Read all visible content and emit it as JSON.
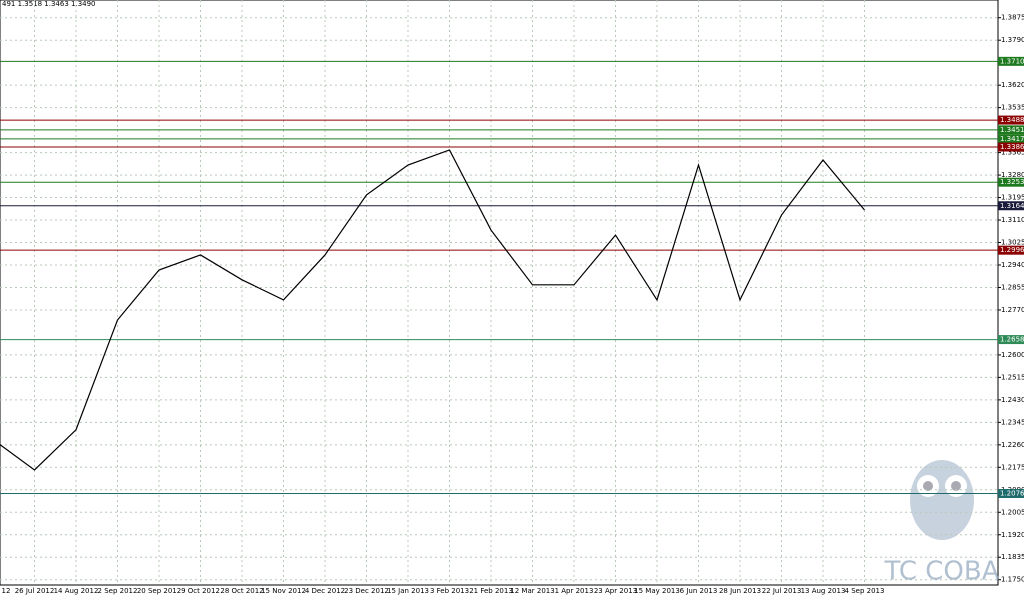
{
  "chart_data": {
    "type": "line",
    "header": "491 1.3518 1.3463 1.3490",
    "categories": [
      "12",
      "26 Jul 2012",
      "14 Aug 2012",
      "2 Sep 2012",
      "20 Sep 2012",
      "9 Oct 2012",
      "28 Oct 2012",
      "15 Nov 2012",
      "4 Dec 2012",
      "23 Dec 2012",
      "15 Jan 2013",
      "3 Feb 2013",
      "21 Feb 2013",
      "12 Mar 2013",
      "1 Apr 2013",
      "23 Apr 2013",
      "15 May 2013",
      "6 Jun 2013",
      "28 Jun 2013",
      "22 Jul 2013",
      "13 Aug 2013",
      "4 Sep 2013"
    ],
    "series": [
      {
        "color": "#000000",
        "values": [
          1.228,
          1.2165,
          1.2317,
          1.2732,
          1.2921,
          1.2978,
          1.2884,
          1.2808,
          1.2978,
          1.3205,
          1.3318,
          1.3375,
          1.3072,
          1.2865,
          1.2865,
          1.3053,
          1.2808,
          1.3318,
          1.2808,
          1.3129,
          1.3337,
          1.3148
        ]
      }
    ],
    "ylim": [
      1.173,
      1.3942
    ],
    "yticks": [
      {
        "value": 1.3875,
        "label": "1.3875"
      },
      {
        "value": 1.379,
        "label": "1.3790"
      },
      {
        "value": 1.362,
        "label": "1.3620"
      },
      {
        "value": 1.3535,
        "label": "1.3535"
      },
      {
        "value": 1.3365,
        "label": "1.3365"
      },
      {
        "value": 1.328,
        "label": "1.3280"
      },
      {
        "value": 1.3195,
        "label": "1.3195"
      },
      {
        "value": 1.311,
        "label": "1.3110"
      },
      {
        "value": 1.3025,
        "label": "1.3025"
      },
      {
        "value": 1.294,
        "label": "1.2940"
      },
      {
        "value": 1.2855,
        "label": "1.2855"
      },
      {
        "value": 1.277,
        "label": "1.2770"
      },
      {
        "value": 1.26,
        "label": "1.2600"
      },
      {
        "value": 1.2515,
        "label": "1.2515"
      },
      {
        "value": 1.243,
        "label": "1.2430"
      },
      {
        "value": 1.2345,
        "label": "1.2345"
      },
      {
        "value": 1.226,
        "label": "1.2260"
      },
      {
        "value": 1.2175,
        "label": "1.2175"
      },
      {
        "value": 1.209,
        "label": "1.2090"
      },
      {
        "value": 1.2005,
        "label": "1.2005"
      },
      {
        "value": 1.192,
        "label": "1.1920"
      },
      {
        "value": 1.1835,
        "label": "1.1835"
      },
      {
        "value": 1.175,
        "label": "1.1750"
      }
    ],
    "levels": [
      {
        "value": 1.371,
        "label": "1.3710",
        "color": "#1f7a1f"
      },
      {
        "value": 1.3488,
        "label": "1.3488",
        "color": "#8b0000"
      },
      {
        "value": 1.3451,
        "label": "1.3451",
        "color": "#1f7a1f"
      },
      {
        "value": 1.3417,
        "label": "1.3417",
        "color": "#1f7a1f"
      },
      {
        "value": 1.3386,
        "label": "1.3386",
        "color": "#8b0000"
      },
      {
        "value": 1.3253,
        "label": "1.3253",
        "color": "#1f7a1f"
      },
      {
        "value": 1.3164,
        "label": "1.3164",
        "color": "#1a1a3a"
      },
      {
        "value": 1.2996,
        "label": "1.2996",
        "color": "#8b0000"
      },
      {
        "value": 1.2658,
        "label": "1.2658",
        "color": "#2e8b57"
      },
      {
        "value": 1.2076,
        "label": "1.2076",
        "color": "#1f6b6b"
      }
    ],
    "grid": true,
    "watermark": "TC COBA"
  }
}
